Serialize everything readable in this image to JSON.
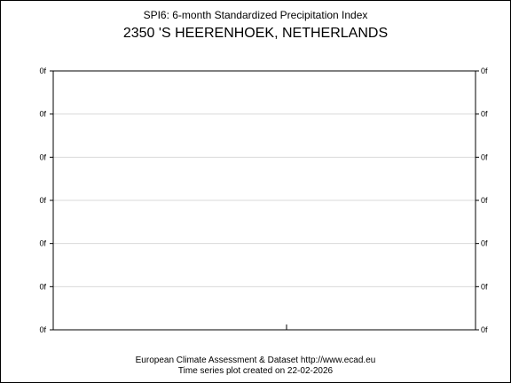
{
  "title": "SPI6: 6-month Standardized Precipitation Index",
  "subtitle": "2350 'S HEERENHOEK, NETHERLANDS",
  "footer": {
    "line1": "European Climate Assessment & Dataset  http://www.ecad.eu",
    "line2": "Time series plot created on 22-02-2026"
  },
  "chart_data": {
    "type": "line",
    "title": "SPI6: 6-month Standardized Precipitation Index",
    "subtitle": "2350 'S HEERENHOEK, NETHERLANDS",
    "xlabel": "",
    "ylabel": "",
    "series": [],
    "y_tick_labels": [
      "0f",
      "0f",
      "0f",
      "0f",
      "0f",
      "0f",
      "0f"
    ],
    "grid": true,
    "legend": "none"
  }
}
